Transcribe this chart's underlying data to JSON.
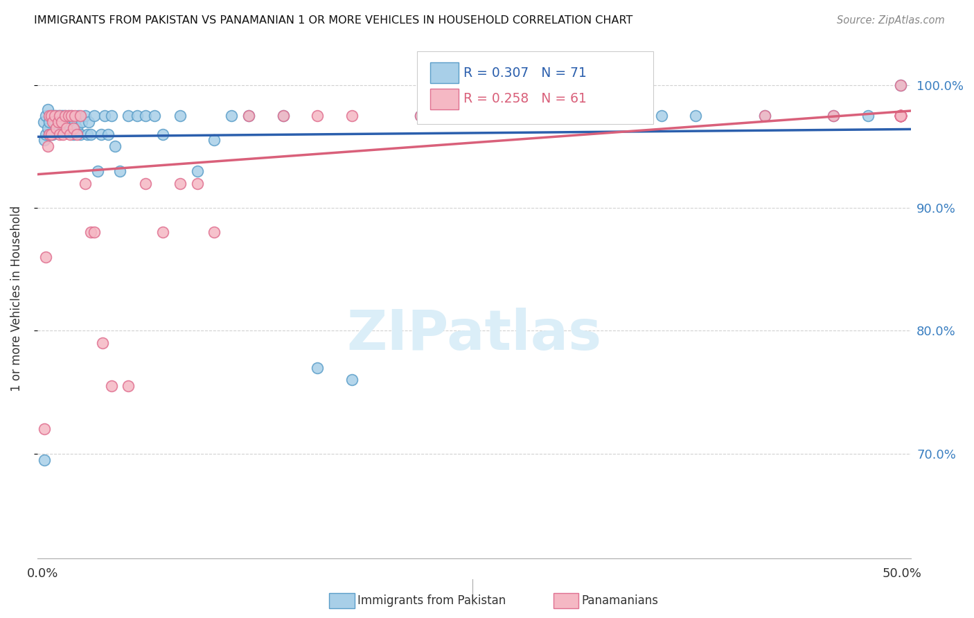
{
  "title": "IMMIGRANTS FROM PAKISTAN VS PANAMANIAN 1 OR MORE VEHICLES IN HOUSEHOLD CORRELATION CHART",
  "source": "Source: ZipAtlas.com",
  "ylabel": "1 or more Vehicles in Household",
  "y_tick_vals": [
    0.7,
    0.8,
    0.9,
    1.0
  ],
  "y_tick_labels": [
    "70.0%",
    "80.0%",
    "90.0%",
    "100.0%"
  ],
  "xlim": [
    -0.003,
    0.505
  ],
  "ylim": [
    0.615,
    1.038
  ],
  "blue_color": "#a8cfe8",
  "blue_edge_color": "#5b9ec9",
  "pink_color": "#f5b8c4",
  "pink_edge_color": "#e07090",
  "blue_line_color": "#2b5fad",
  "pink_line_color": "#d9607a",
  "watermark_color": "#dbeef8",
  "legend_r_blue": "R = 0.307",
  "legend_n_blue": "N = 71",
  "legend_r_pink": "R = 0.258",
  "legend_n_pink": "N = 61",
  "blue_x": [
    0.0005,
    0.001,
    0.001,
    0.002,
    0.002,
    0.003,
    0.003,
    0.004,
    0.004,
    0.005,
    0.005,
    0.006,
    0.006,
    0.007,
    0.007,
    0.008,
    0.008,
    0.009,
    0.009,
    0.01,
    0.01,
    0.011,
    0.011,
    0.012,
    0.012,
    0.013,
    0.013,
    0.014,
    0.015,
    0.016,
    0.017,
    0.018,
    0.019,
    0.02,
    0.021,
    0.022,
    0.023,
    0.025,
    0.026,
    0.027,
    0.028,
    0.03,
    0.032,
    0.034,
    0.036,
    0.038,
    0.04,
    0.042,
    0.045,
    0.05,
    0.055,
    0.06,
    0.065,
    0.07,
    0.08,
    0.09,
    0.1,
    0.11,
    0.12,
    0.14,
    0.16,
    0.18,
    0.22,
    0.28,
    0.32,
    0.36,
    0.38,
    0.42,
    0.46,
    0.48,
    0.499
  ],
  "blue_y": [
    0.97,
    0.695,
    0.955,
    0.96,
    0.975,
    0.965,
    0.98,
    0.97,
    0.96,
    0.975,
    0.96,
    0.975,
    0.96,
    0.97,
    0.975,
    0.965,
    0.975,
    0.97,
    0.975,
    0.965,
    0.975,
    0.97,
    0.975,
    0.965,
    0.975,
    0.965,
    0.975,
    0.97,
    0.975,
    0.965,
    0.975,
    0.96,
    0.97,
    0.965,
    0.975,
    0.96,
    0.97,
    0.975,
    0.96,
    0.97,
    0.96,
    0.975,
    0.93,
    0.96,
    0.975,
    0.96,
    0.975,
    0.95,
    0.93,
    0.975,
    0.975,
    0.975,
    0.975,
    0.96,
    0.975,
    0.93,
    0.955,
    0.975,
    0.975,
    0.975,
    0.77,
    0.76,
    0.975,
    0.975,
    0.975,
    0.975,
    0.975,
    0.975,
    0.975,
    0.975,
    1.0
  ],
  "pink_x": [
    0.001,
    0.002,
    0.003,
    0.004,
    0.004,
    0.005,
    0.005,
    0.006,
    0.007,
    0.008,
    0.009,
    0.01,
    0.01,
    0.011,
    0.012,
    0.013,
    0.014,
    0.015,
    0.016,
    0.017,
    0.018,
    0.019,
    0.02,
    0.022,
    0.025,
    0.028,
    0.03,
    0.035,
    0.04,
    0.05,
    0.06,
    0.07,
    0.08,
    0.09,
    0.1,
    0.12,
    0.14,
    0.16,
    0.18,
    0.22,
    0.25,
    0.3,
    0.35,
    0.42,
    0.46,
    0.499,
    0.499,
    0.499,
    0.499,
    0.499,
    0.499,
    0.499,
    0.499,
    0.499,
    0.499,
    0.499,
    0.499,
    0.499,
    0.499,
    0.499,
    0.499
  ],
  "pink_y": [
    0.72,
    0.86,
    0.95,
    0.975,
    0.96,
    0.975,
    0.96,
    0.97,
    0.975,
    0.965,
    0.97,
    0.96,
    0.975,
    0.97,
    0.96,
    0.975,
    0.965,
    0.975,
    0.96,
    0.975,
    0.965,
    0.975,
    0.96,
    0.975,
    0.92,
    0.88,
    0.88,
    0.79,
    0.755,
    0.755,
    0.92,
    0.88,
    0.92,
    0.92,
    0.88,
    0.975,
    0.975,
    0.975,
    0.975,
    0.975,
    0.975,
    0.975,
    0.975,
    0.975,
    0.975,
    0.975,
    0.975,
    0.975,
    0.975,
    0.975,
    0.975,
    0.975,
    0.975,
    0.975,
    0.975,
    0.975,
    0.975,
    0.975,
    0.975,
    0.975,
    1.0
  ]
}
